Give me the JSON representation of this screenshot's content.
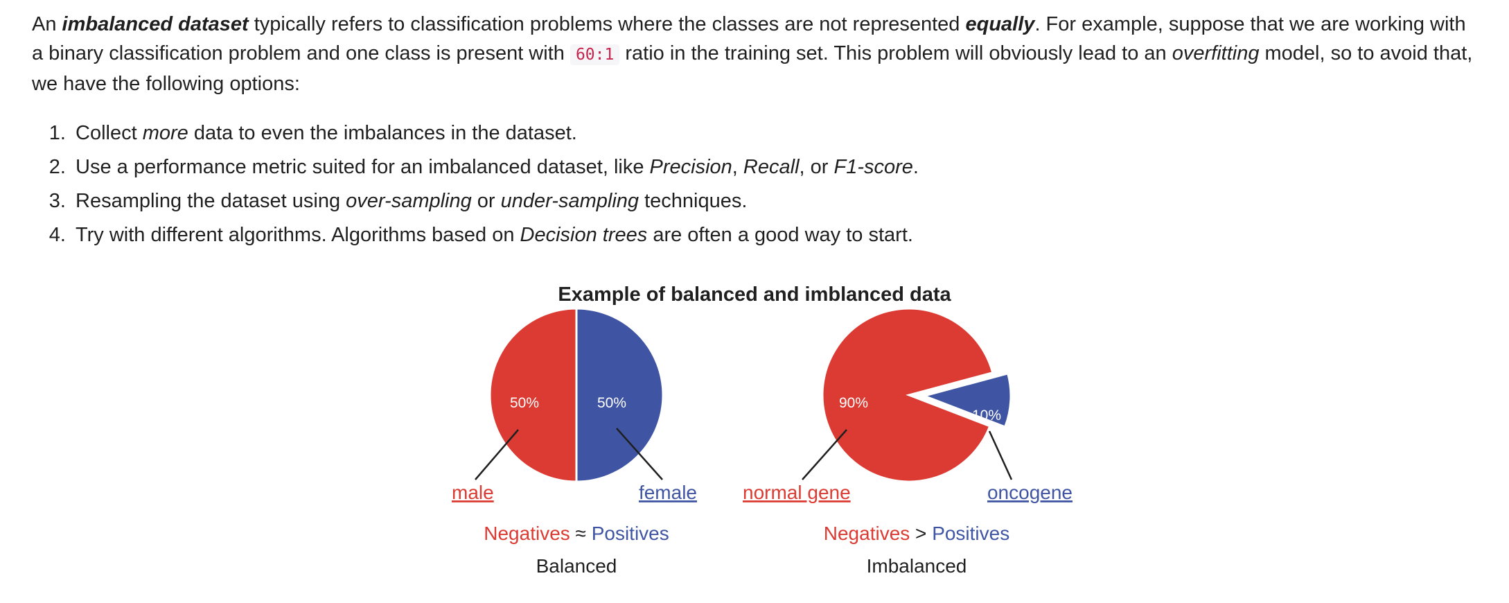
{
  "intro": {
    "p1": "An ",
    "term": "imbalanced dataset",
    "p2": " typically refers to classification problems where the classes are not represented ",
    "equally": "equally",
    "p3": ". For example, suppose that we are working with a binary classification problem and one class is present with ",
    "ratio": "60:1",
    "p4": " ratio in the training set. This problem will obviously lead to an ",
    "overfitting": "overfitting",
    "p5": " model, so to avoid that, we have the following options:"
  },
  "options": [
    {
      "a": "Collect ",
      "b": "more",
      "c": " data to even the imbalances in the dataset."
    },
    {
      "a": "Use a performance metric suited for an imbalanced dataset, like ",
      "b": "Precision",
      "c": ", ",
      "d": "Recall",
      "e": ", or ",
      "f": "F1-score",
      "g": "."
    },
    {
      "a": "Resampling the dataset using ",
      "b": "over-sampling",
      "c": " or ",
      "d": "under-sampling",
      "e": " techniques."
    },
    {
      "a": "Try with different algorithms. Algorithms based on ",
      "b": "Decision trees",
      "c": " are often a good way to start."
    }
  ],
  "chart_data": {
    "type": "pie",
    "title": "Example of balanced and imblanced data",
    "colors": {
      "negative": "#db3b32",
      "positive": "#3f55a3",
      "text": "#1f1f1f"
    },
    "charts": [
      {
        "caption": "Balanced",
        "relation": "≈",
        "slices": [
          {
            "label": "male",
            "value": 50,
            "pct_label": "50%",
            "class": "Negatives"
          },
          {
            "label": "female",
            "value": 50,
            "pct_label": "50%",
            "class": "Positives"
          }
        ],
        "legend": {
          "neg": "Negatives",
          "sym": "≈",
          "pos": "Positives"
        }
      },
      {
        "caption": "Imbalanced",
        "relation": ">",
        "slices": [
          {
            "label": "normal gene",
            "value": 90,
            "pct_label": "90%",
            "class": "Negatives"
          },
          {
            "label": "oncogene",
            "value": 10,
            "pct_label": "10%",
            "class": "Positives"
          }
        ],
        "legend": {
          "neg": "Negatives",
          "sym": ">",
          "pos": "Positives"
        }
      }
    ]
  }
}
